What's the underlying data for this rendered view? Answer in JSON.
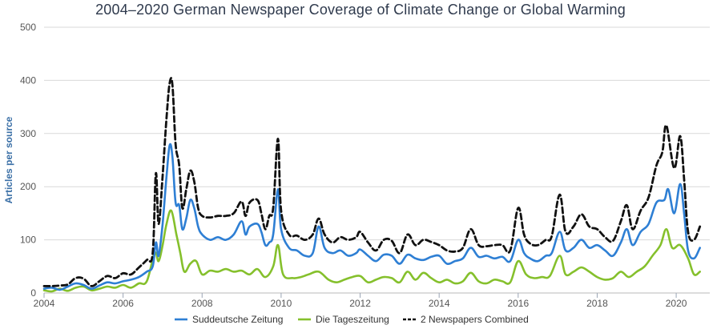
{
  "chart_data": {
    "type": "line",
    "title": "2004–2020 German Newspaper Coverage of Climate Change or Global Warming",
    "xlabel": "",
    "ylabel": "Articles per source",
    "xlim": [
      2004,
      2020.6
    ],
    "ylim": [
      0,
      500
    ],
    "xticks": [
      "2004",
      "2006",
      "2008",
      "2010",
      "2012",
      "2014",
      "2016",
      "2018",
      "2020"
    ],
    "yticks": [
      "0",
      "100",
      "200",
      "300",
      "400",
      "500"
    ],
    "grid": true,
    "legend_position": "bottom",
    "colors": {
      "sz": "#2e7fd4",
      "taz": "#85c02c",
      "combined": "#111111"
    },
    "series": [
      {
        "name": "Suddeutsche Zeitung",
        "key": "sz",
        "points": [
          [
            2004.0,
            8
          ],
          [
            2004.2,
            10
          ],
          [
            2004.4,
            6
          ],
          [
            2004.6,
            12
          ],
          [
            2004.8,
            18
          ],
          [
            2005.0,
            15
          ],
          [
            2005.2,
            8
          ],
          [
            2005.4,
            14
          ],
          [
            2005.6,
            20
          ],
          [
            2005.8,
            18
          ],
          [
            2006.0,
            22
          ],
          [
            2006.2,
            25
          ],
          [
            2006.4,
            30
          ],
          [
            2006.6,
            40
          ],
          [
            2006.75,
            50
          ],
          [
            2006.83,
            95
          ],
          [
            2006.9,
            70
          ],
          [
            2007.0,
            130
          ],
          [
            2007.1,
            220
          ],
          [
            2007.18,
            278
          ],
          [
            2007.25,
            255
          ],
          [
            2007.33,
            170
          ],
          [
            2007.42,
            165
          ],
          [
            2007.5,
            120
          ],
          [
            2007.6,
            140
          ],
          [
            2007.7,
            175
          ],
          [
            2007.8,
            160
          ],
          [
            2007.9,
            125
          ],
          [
            2008.0,
            110
          ],
          [
            2008.2,
            100
          ],
          [
            2008.4,
            105
          ],
          [
            2008.6,
            100
          ],
          [
            2008.8,
            110
          ],
          [
            2009.0,
            135
          ],
          [
            2009.1,
            110
          ],
          [
            2009.2,
            125
          ],
          [
            2009.4,
            130
          ],
          [
            2009.5,
            115
          ],
          [
            2009.6,
            90
          ],
          [
            2009.7,
            95
          ],
          [
            2009.8,
            110
          ],
          [
            2009.92,
            195
          ],
          [
            2010.0,
            120
          ],
          [
            2010.2,
            85
          ],
          [
            2010.4,
            80
          ],
          [
            2010.6,
            70
          ],
          [
            2010.8,
            75
          ],
          [
            2010.95,
            125
          ],
          [
            2011.1,
            85
          ],
          [
            2011.3,
            75
          ],
          [
            2011.5,
            80
          ],
          [
            2011.7,
            70
          ],
          [
            2011.9,
            75
          ],
          [
            2012.0,
            82
          ],
          [
            2012.2,
            70
          ],
          [
            2012.4,
            60
          ],
          [
            2012.6,
            72
          ],
          [
            2012.8,
            70
          ],
          [
            2013.0,
            55
          ],
          [
            2013.2,
            72
          ],
          [
            2013.4,
            65
          ],
          [
            2013.6,
            62
          ],
          [
            2013.8,
            68
          ],
          [
            2014.0,
            70
          ],
          [
            2014.2,
            55
          ],
          [
            2014.4,
            60
          ],
          [
            2014.6,
            65
          ],
          [
            2014.8,
            85
          ],
          [
            2015.0,
            68
          ],
          [
            2015.2,
            70
          ],
          [
            2015.4,
            65
          ],
          [
            2015.6,
            68
          ],
          [
            2015.8,
            60
          ],
          [
            2016.0,
            100
          ],
          [
            2016.15,
            75
          ],
          [
            2016.3,
            65
          ],
          [
            2016.5,
            60
          ],
          [
            2016.7,
            70
          ],
          [
            2016.85,
            75
          ],
          [
            2017.05,
            115
          ],
          [
            2017.2,
            80
          ],
          [
            2017.4,
            85
          ],
          [
            2017.6,
            100
          ],
          [
            2017.8,
            85
          ],
          [
            2018.0,
            90
          ],
          [
            2018.2,
            80
          ],
          [
            2018.4,
            70
          ],
          [
            2018.6,
            95
          ],
          [
            2018.75,
            120
          ],
          [
            2018.9,
            90
          ],
          [
            2019.1,
            115
          ],
          [
            2019.3,
            130
          ],
          [
            2019.5,
            170
          ],
          [
            2019.7,
            175
          ],
          [
            2019.8,
            195
          ],
          [
            2019.95,
            150
          ],
          [
            2020.1,
            205
          ],
          [
            2020.2,
            150
          ],
          [
            2020.3,
            80
          ],
          [
            2020.45,
            65
          ],
          [
            2020.6,
            85
          ]
        ]
      },
      {
        "name": "Die Tageszeitung",
        "key": "taz",
        "points": [
          [
            2004.0,
            5
          ],
          [
            2004.2,
            3
          ],
          [
            2004.4,
            8
          ],
          [
            2004.6,
            4
          ],
          [
            2004.8,
            10
          ],
          [
            2005.0,
            12
          ],
          [
            2005.2,
            5
          ],
          [
            2005.4,
            8
          ],
          [
            2005.6,
            12
          ],
          [
            2005.8,
            10
          ],
          [
            2006.0,
            15
          ],
          [
            2006.2,
            10
          ],
          [
            2006.4,
            18
          ],
          [
            2006.6,
            22
          ],
          [
            2006.8,
            75
          ],
          [
            2006.9,
            60
          ],
          [
            2007.0,
            90
          ],
          [
            2007.1,
            130
          ],
          [
            2007.22,
            155
          ],
          [
            2007.35,
            110
          ],
          [
            2007.45,
            75
          ],
          [
            2007.55,
            40
          ],
          [
            2007.7,
            55
          ],
          [
            2007.85,
            60
          ],
          [
            2008.0,
            35
          ],
          [
            2008.2,
            42
          ],
          [
            2008.4,
            40
          ],
          [
            2008.6,
            45
          ],
          [
            2008.8,
            40
          ],
          [
            2009.0,
            42
          ],
          [
            2009.2,
            35
          ],
          [
            2009.4,
            45
          ],
          [
            2009.6,
            30
          ],
          [
            2009.8,
            50
          ],
          [
            2009.92,
            90
          ],
          [
            2010.05,
            35
          ],
          [
            2010.3,
            28
          ],
          [
            2010.5,
            30
          ],
          [
            2010.7,
            35
          ],
          [
            2010.95,
            40
          ],
          [
            2011.2,
            25
          ],
          [
            2011.4,
            20
          ],
          [
            2011.6,
            25
          ],
          [
            2011.8,
            30
          ],
          [
            2012.0,
            32
          ],
          [
            2012.2,
            20
          ],
          [
            2012.4,
            25
          ],
          [
            2012.6,
            30
          ],
          [
            2012.8,
            28
          ],
          [
            2013.0,
            20
          ],
          [
            2013.2,
            40
          ],
          [
            2013.4,
            25
          ],
          [
            2013.6,
            38
          ],
          [
            2013.8,
            28
          ],
          [
            2014.0,
            20
          ],
          [
            2014.2,
            25
          ],
          [
            2014.4,
            18
          ],
          [
            2014.6,
            22
          ],
          [
            2014.8,
            38
          ],
          [
            2015.0,
            22
          ],
          [
            2015.2,
            18
          ],
          [
            2015.4,
            25
          ],
          [
            2015.6,
            22
          ],
          [
            2015.8,
            20
          ],
          [
            2016.0,
            60
          ],
          [
            2016.2,
            35
          ],
          [
            2016.4,
            28
          ],
          [
            2016.6,
            30
          ],
          [
            2016.8,
            32
          ],
          [
            2017.05,
            70
          ],
          [
            2017.2,
            35
          ],
          [
            2017.4,
            40
          ],
          [
            2017.6,
            48
          ],
          [
            2017.8,
            40
          ],
          [
            2018.0,
            30
          ],
          [
            2018.2,
            25
          ],
          [
            2018.4,
            28
          ],
          [
            2018.6,
            40
          ],
          [
            2018.8,
            30
          ],
          [
            2019.0,
            40
          ],
          [
            2019.2,
            50
          ],
          [
            2019.4,
            70
          ],
          [
            2019.6,
            90
          ],
          [
            2019.75,
            120
          ],
          [
            2019.9,
            85
          ],
          [
            2020.1,
            90
          ],
          [
            2020.3,
            65
          ],
          [
            2020.45,
            35
          ],
          [
            2020.6,
            40
          ]
        ]
      },
      {
        "name": "2 Newspapers Combined",
        "key": "combined",
        "points": [
          [
            2004.0,
            13
          ],
          [
            2004.2,
            13
          ],
          [
            2004.4,
            14
          ],
          [
            2004.6,
            16
          ],
          [
            2004.8,
            28
          ],
          [
            2005.0,
            27
          ],
          [
            2005.2,
            13
          ],
          [
            2005.4,
            22
          ],
          [
            2005.6,
            32
          ],
          [
            2005.8,
            28
          ],
          [
            2006.0,
            37
          ],
          [
            2006.2,
            35
          ],
          [
            2006.4,
            48
          ],
          [
            2006.6,
            62
          ],
          [
            2006.75,
            75
          ],
          [
            2006.83,
            225
          ],
          [
            2006.9,
            130
          ],
          [
            2007.0,
            220
          ],
          [
            2007.1,
            330
          ],
          [
            2007.18,
            395
          ],
          [
            2007.25,
            390
          ],
          [
            2007.33,
            280
          ],
          [
            2007.42,
            240
          ],
          [
            2007.5,
            160
          ],
          [
            2007.6,
            195
          ],
          [
            2007.7,
            230
          ],
          [
            2007.8,
            210
          ],
          [
            2007.9,
            160
          ],
          [
            2008.0,
            145
          ],
          [
            2008.2,
            142
          ],
          [
            2008.4,
            145
          ],
          [
            2008.6,
            145
          ],
          [
            2008.8,
            150
          ],
          [
            2009.0,
            172
          ],
          [
            2009.1,
            145
          ],
          [
            2009.2,
            170
          ],
          [
            2009.4,
            175
          ],
          [
            2009.5,
            150
          ],
          [
            2009.6,
            120
          ],
          [
            2009.7,
            145
          ],
          [
            2009.8,
            160
          ],
          [
            2009.92,
            290
          ],
          [
            2010.0,
            155
          ],
          [
            2010.2,
            110
          ],
          [
            2010.4,
            108
          ],
          [
            2010.6,
            100
          ],
          [
            2010.8,
            110
          ],
          [
            2010.95,
            140
          ],
          [
            2011.1,
            110
          ],
          [
            2011.3,
            95
          ],
          [
            2011.5,
            105
          ],
          [
            2011.7,
            100
          ],
          [
            2011.9,
            105
          ],
          [
            2012.0,
            115
          ],
          [
            2012.2,
            95
          ],
          [
            2012.4,
            80
          ],
          [
            2012.6,
            100
          ],
          [
            2012.8,
            98
          ],
          [
            2013.0,
            75
          ],
          [
            2013.2,
            110
          ],
          [
            2013.4,
            90
          ],
          [
            2013.6,
            100
          ],
          [
            2013.8,
            96
          ],
          [
            2014.0,
            90
          ],
          [
            2014.2,
            80
          ],
          [
            2014.4,
            78
          ],
          [
            2014.6,
            85
          ],
          [
            2014.8,
            120
          ],
          [
            2015.0,
            90
          ],
          [
            2015.2,
            88
          ],
          [
            2015.4,
            90
          ],
          [
            2015.6,
            90
          ],
          [
            2015.8,
            80
          ],
          [
            2016.0,
            160
          ],
          [
            2016.15,
            110
          ],
          [
            2016.3,
            93
          ],
          [
            2016.5,
            90
          ],
          [
            2016.7,
            100
          ],
          [
            2016.85,
            107
          ],
          [
            2017.05,
            185
          ],
          [
            2017.2,
            115
          ],
          [
            2017.4,
            125
          ],
          [
            2017.6,
            148
          ],
          [
            2017.8,
            125
          ],
          [
            2018.0,
            120
          ],
          [
            2018.2,
            105
          ],
          [
            2018.4,
            98
          ],
          [
            2018.6,
            135
          ],
          [
            2018.75,
            165
          ],
          [
            2018.9,
            120
          ],
          [
            2019.1,
            155
          ],
          [
            2019.3,
            180
          ],
          [
            2019.5,
            240
          ],
          [
            2019.65,
            265
          ],
          [
            2019.75,
            315
          ],
          [
            2019.95,
            235
          ],
          [
            2020.1,
            295
          ],
          [
            2020.2,
            215
          ],
          [
            2020.3,
            115
          ],
          [
            2020.45,
            100
          ],
          [
            2020.6,
            125
          ]
        ]
      }
    ]
  }
}
